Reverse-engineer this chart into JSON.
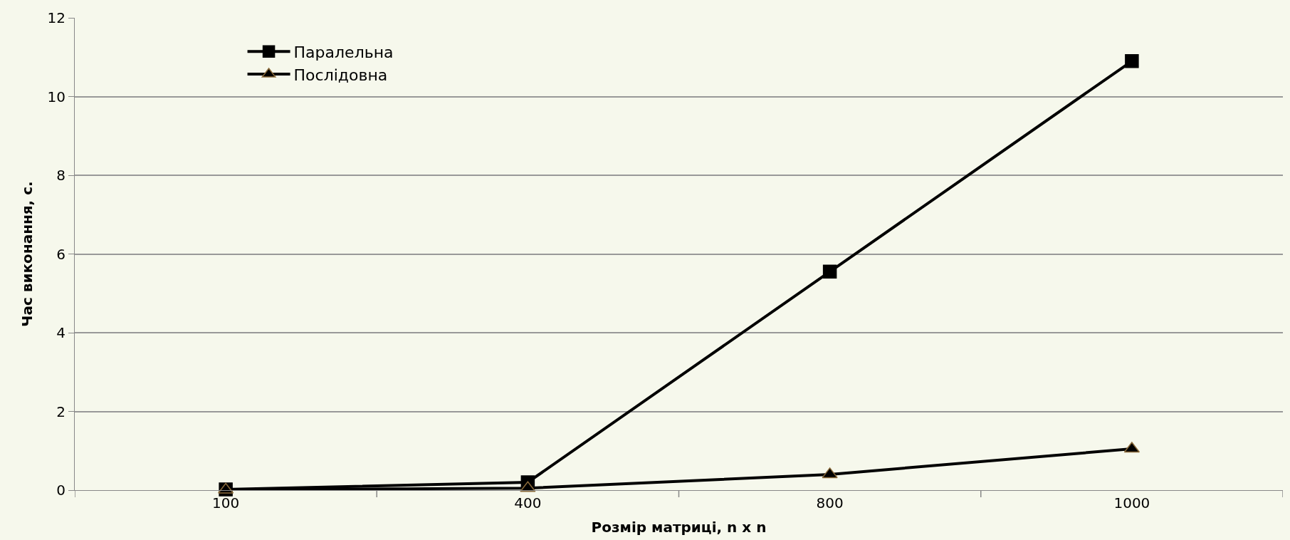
{
  "chart_data": {
    "type": "line",
    "xlabel": "Розмір матриці, n x n",
    "ylabel": "Час виконання, с.",
    "categories": [
      "100",
      "400",
      "800",
      "1000"
    ],
    "series": [
      {
        "name": "Паралельна",
        "color": "#000000",
        "marker": "square",
        "values": [
          0.02,
          0.2,
          5.55,
          10.9
        ]
      },
      {
        "name": "Послідовна",
        "color": "#000000",
        "marker": "triangle",
        "values": [
          0.01,
          0.05,
          0.4,
          1.05
        ]
      }
    ],
    "ylim": [
      0,
      12
    ],
    "yticks": [
      0,
      2,
      4,
      6,
      8,
      10,
      12
    ],
    "grid": "y",
    "legend": "top left",
    "line_style": "solid"
  }
}
